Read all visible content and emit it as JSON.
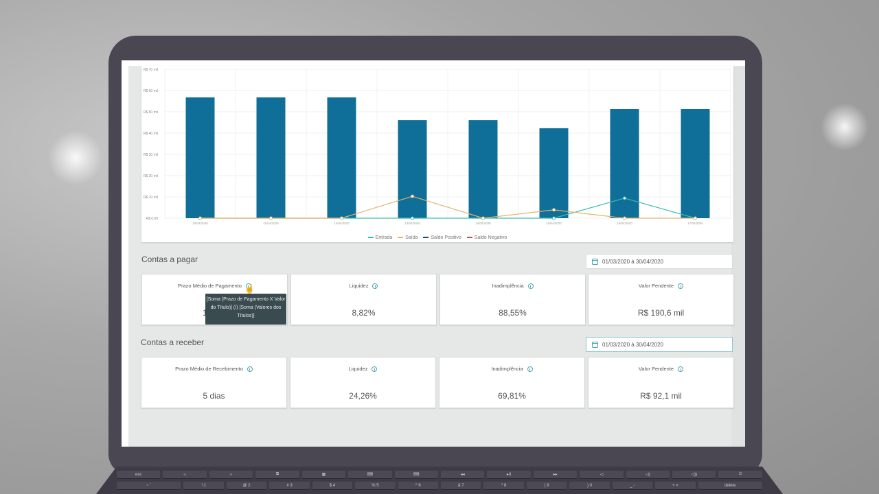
{
  "chart_data": {
    "type": "bar",
    "title": "",
    "xlabel": "",
    "ylabel": "",
    "ylim": [
      0,
      70000
    ],
    "yticks": [
      "R$ 0,00",
      "R$ 10 mil",
      "R$ 20 mil",
      "R$ 30 mil",
      "R$ 40 mil",
      "R$ 50 mil",
      "R$ 60 mil",
      "R$ 70 mil"
    ],
    "categories": [
      "10/04/2020",
      "11/04/2020",
      "12/04/2020",
      "13/04/2020",
      "14/04/2020",
      "15/04/2020",
      "16/04/2020",
      "17/04/2020"
    ],
    "series": [
      {
        "name": "Saldo Positivo",
        "type": "bar",
        "color": "#0f6f98",
        "values": [
          56800,
          56800,
          56800,
          46100,
          46100,
          42300,
          51300,
          51300
        ]
      },
      {
        "name": "Entrada",
        "type": "line",
        "color": "#3cbcb4",
        "values": [
          0,
          0,
          0,
          0,
          0,
          0,
          9400,
          0
        ]
      },
      {
        "name": "Saída",
        "type": "line",
        "color": "#e3b46e",
        "values": [
          0,
          0,
          0,
          10300,
          0,
          3900,
          0,
          0
        ]
      },
      {
        "name": "Saldo Negativo",
        "type": "line",
        "color": "#c0504d",
        "values": [
          0,
          0,
          0,
          0,
          0,
          0,
          0,
          0
        ]
      }
    ],
    "legend": [
      "Entrada",
      "Saída",
      "Saldo Positivo",
      "Saldo Negativo"
    ],
    "legend_position": "bottom",
    "grid": true
  },
  "legend": {
    "entrada": "Entrada",
    "saida": "Saída",
    "saldo_positivo": "Saldo Positivo",
    "saldo_negativo": "Saldo Negativo"
  },
  "colors": {
    "bar": "#0f6f98",
    "entrada": "#3cbcb4",
    "saida": "#e3b46e",
    "saldo_positivo": "#1a4d6e",
    "saldo_negativo": "#c0504d",
    "accent": "#4aa3ae"
  },
  "contas_pagar": {
    "title": "Contas a pagar",
    "date_range": "01/03/2020 à 30/04/2020",
    "cards": [
      {
        "label": "Prazo Médio de Pagamento",
        "value": "1"
      },
      {
        "label": "Liquidez",
        "value": "8,82%"
      },
      {
        "label": "Inadimplência",
        "value": "88,55%"
      },
      {
        "label": "Valor Pendente",
        "value": "R$ 190,6 mil"
      }
    ],
    "tooltip": "[Soma (Prazo de Pagamento X Valor do Título)] (/) [Soma (Valores dos Títulos)]"
  },
  "contas_receber": {
    "title": "Contas a receber",
    "date_range": "01/03/2020 à 30/04/2020",
    "cards": [
      {
        "label": "Prazo Médio de Recebimento",
        "value": "5 dias"
      },
      {
        "label": "Liquidez",
        "value": "24,26%"
      },
      {
        "label": "Inadimplência",
        "value": "69,81%"
      },
      {
        "label": "Valor Pendente",
        "value": "R$ 92,1 mil"
      }
    ]
  },
  "keyboard": {
    "row1": [
      "esc",
      "☼",
      "☼",
      "⧉",
      "▦",
      "⌨",
      "⌨",
      "◂◂",
      "▸II",
      "▸▸",
      "◁",
      "◁)",
      "◁))",
      "⏻"
    ],
    "row2": [
      "~ `",
      "! 1",
      "@ 2",
      "# 3",
      "$ 4",
      "% 5",
      "^ 6",
      "& 7",
      "* 8",
      "( 9",
      ") 0",
      "_ -",
      "+ =",
      "delete"
    ]
  }
}
